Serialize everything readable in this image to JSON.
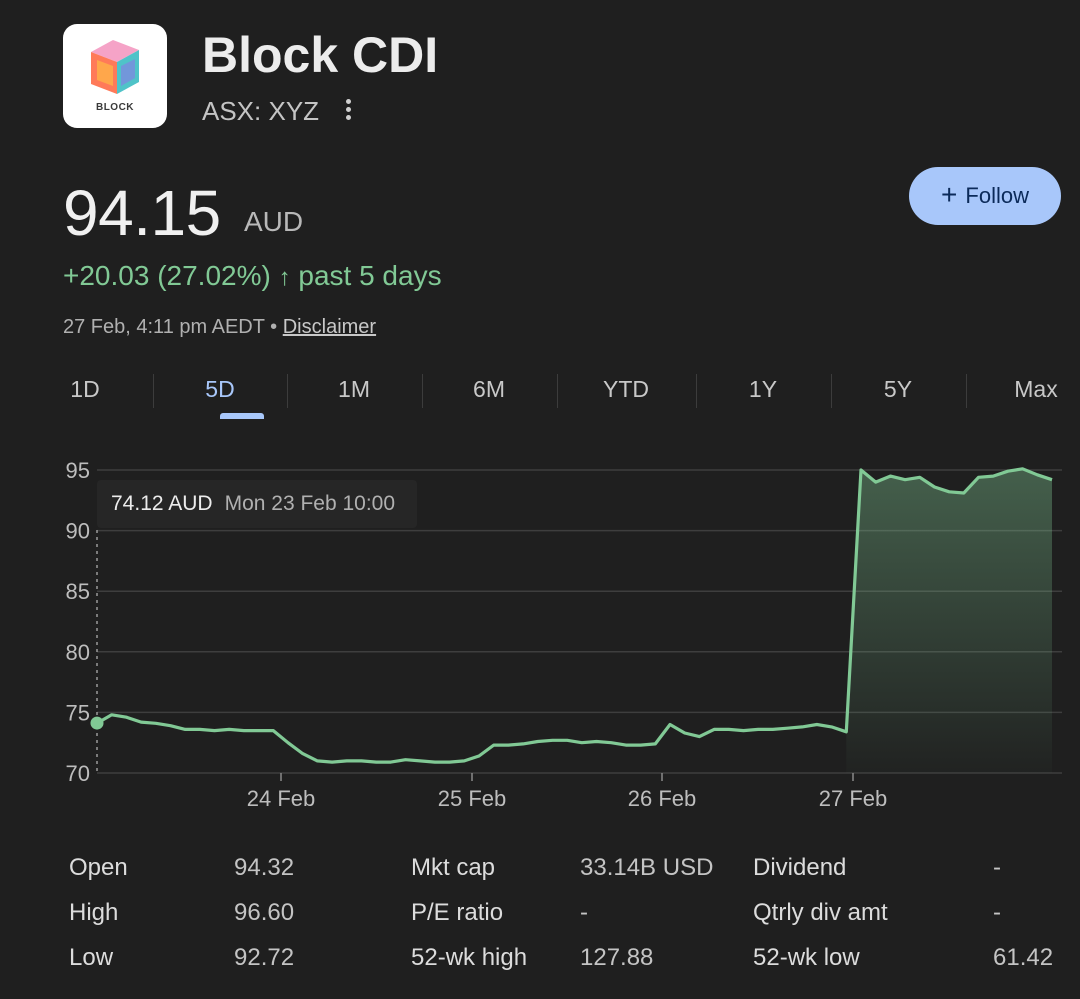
{
  "header": {
    "logo_text": "BLOCK",
    "title": "Block CDI",
    "ticker": "ASX: XYZ",
    "menu_icon": "more-vert-icon"
  },
  "quote": {
    "price": "94.15",
    "currency": "AUD",
    "change": "+20.03 (27.02%)",
    "change_arrow": "↑",
    "change_period": "past 5 days",
    "timestamp": "27 Feb, 4:11 pm AEDT",
    "separator": "•",
    "disclaimer": "Disclaimer",
    "accent_color": "#81c995"
  },
  "follow": {
    "plus": "+",
    "label": "Follow"
  },
  "tabs": [
    {
      "label": "1D"
    },
    {
      "label": "5D"
    },
    {
      "label": "1M"
    },
    {
      "label": "6M"
    },
    {
      "label": "YTD"
    },
    {
      "label": "1Y"
    },
    {
      "label": "5Y"
    },
    {
      "label": "Max"
    }
  ],
  "active_tab": "5D",
  "tooltip": {
    "value": "74.12 AUD",
    "date": "Mon 23 Feb 10:00"
  },
  "chart_data": {
    "type": "area",
    "ylim": [
      70,
      95
    ],
    "y_ticks": [
      "95",
      "90",
      "85",
      "80",
      "75",
      "70"
    ],
    "x_ticks": [
      "24 Feb",
      "25 Feb",
      "26 Feb",
      "27 Feb"
    ],
    "line_color": "#81c995",
    "series": [
      {
        "values": [
          74.1,
          74.8,
          74.6,
          74.2,
          74.1,
          73.9,
          73.6,
          73.6,
          73.5,
          73.6,
          73.5,
          73.5,
          73.5,
          72.5,
          71.6,
          71.0,
          70.9,
          71.0,
          71.0,
          70.9,
          70.9,
          71.1,
          71.0,
          70.9,
          70.9,
          71.0,
          71.4,
          72.3,
          72.3,
          72.4,
          72.6,
          72.7,
          72.7,
          72.5,
          72.6,
          72.5,
          72.3,
          72.3,
          72.4,
          74.0,
          73.3,
          73.0,
          73.6,
          73.6,
          73.5,
          73.6,
          73.6,
          73.7,
          73.8,
          74.0,
          73.8,
          73.4,
          95.0,
          94.0,
          94.5,
          94.2,
          94.4,
          93.6,
          93.2,
          93.1,
          94.4,
          94.5,
          94.9,
          95.1,
          94.6,
          94.2
        ]
      }
    ],
    "marker": {
      "index": 0,
      "value": 74.12
    }
  },
  "stats": [
    [
      {
        "label": "Open",
        "value": "94.32"
      },
      {
        "label": "Mkt cap",
        "value": "33.14B USD"
      },
      {
        "label": "Dividend",
        "value": "-"
      }
    ],
    [
      {
        "label": "High",
        "value": "96.60"
      },
      {
        "label": "P/E ratio",
        "value": "-"
      },
      {
        "label": "Qtrly div amt",
        "value": "-"
      }
    ],
    [
      {
        "label": "Low",
        "value": "92.72"
      },
      {
        "label": "52-wk high",
        "value": "127.88"
      },
      {
        "label": "52-wk low",
        "value": "61.42"
      }
    ]
  ]
}
